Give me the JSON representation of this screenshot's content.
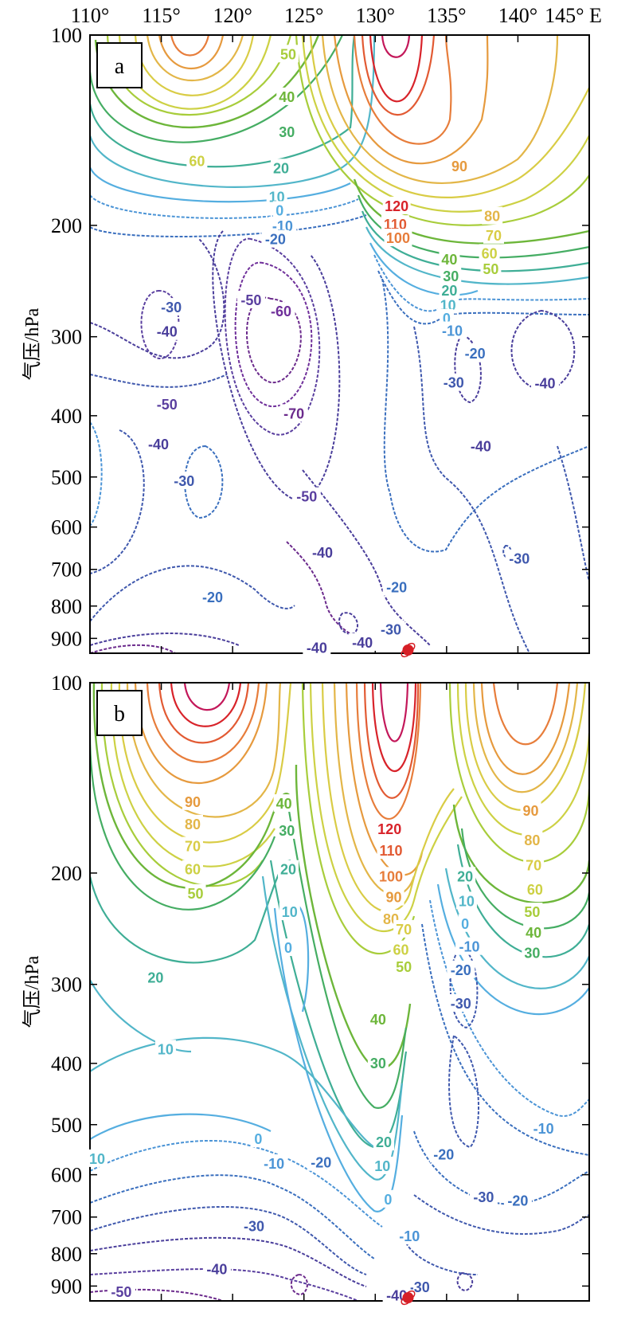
{
  "figure": {
    "x_unit_suffix": "E"
  },
  "colors": {
    "contours": {
      "-70": "#6b2a8c",
      "-60": "#6f2f9a",
      "-50": "#5a3f9f",
      "-40": "#4a3e9b",
      "-30": "#3f58ad",
      "-20": "#3a6fbe",
      "-10": "#4b94d6",
      "0": "#55aee0",
      "10": "#52b6c9",
      "20": "#3fae96",
      "30": "#45ad63",
      "40": "#6db63a",
      "50": "#a8cd3b",
      "60": "#cdd144",
      "70": "#d9cc45",
      "80": "#e3b648",
      "90": "#e69a3e",
      "100": "#e77d3b",
      "110": "#e25a33",
      "120": "#d8232a"
    },
    "marker": "#d61f26"
  },
  "chart_data": [
    {
      "type": "contour",
      "panel_label": "a",
      "x_ticks": [
        110,
        115,
        120,
        125,
        130,
        135,
        140,
        145
      ],
      "x_tick_labels": [
        "110°",
        "115°",
        "120°",
        "125°",
        "130°",
        "135°",
        "140°",
        "145° E"
      ],
      "xlim": [
        110,
        145
      ],
      "y_ticks": [
        100,
        200,
        300,
        400,
        500,
        600,
        700,
        800,
        900
      ],
      "y_tick_labels": [
        "100",
        "200",
        "300",
        "400",
        "500",
        "600",
        "700",
        "800",
        "900"
      ],
      "ylim": [
        100,
        950
      ],
      "ylabel": "气压/hPa",
      "y_scale": "log",
      "marker": {
        "x": 132.3,
        "y": 950
      },
      "labels": [
        {
          "text": "50",
          "v": 50,
          "x": 123.9,
          "y": 107
        },
        {
          "text": "40",
          "v": 40,
          "x": 123.8,
          "y": 125
        },
        {
          "text": "30",
          "v": 30,
          "x": 123.8,
          "y": 142
        },
        {
          "text": "60",
          "v": 60,
          "x": 117.5,
          "y": 158
        },
        {
          "text": "20",
          "v": 20,
          "x": 123.4,
          "y": 162
        },
        {
          "text": "10",
          "v": 10,
          "x": 123.1,
          "y": 180
        },
        {
          "text": "0",
          "v": 0,
          "x": 123.3,
          "y": 189
        },
        {
          "text": "-10",
          "v": -10,
          "x": 123.5,
          "y": 200
        },
        {
          "text": "-20",
          "v": -20,
          "x": 123.0,
          "y": 210
        },
        {
          "text": "90",
          "v": 90,
          "x": 135.9,
          "y": 161
        },
        {
          "text": "120",
          "v": 120,
          "x": 131.5,
          "y": 186
        },
        {
          "text": "110",
          "v": 110,
          "x": 131.4,
          "y": 199
        },
        {
          "text": "100",
          "v": 100,
          "x": 131.6,
          "y": 209
        },
        {
          "text": "80",
          "v": 80,
          "x": 138.2,
          "y": 193
        },
        {
          "text": "70",
          "v": 70,
          "x": 138.3,
          "y": 207
        },
        {
          "text": "60",
          "v": 60,
          "x": 138.0,
          "y": 221
        },
        {
          "text": "50",
          "v": 50,
          "x": 138.1,
          "y": 234
        },
        {
          "text": "40",
          "v": 40,
          "x": 135.2,
          "y": 226
        },
        {
          "text": "30",
          "v": 30,
          "x": 135.3,
          "y": 240
        },
        {
          "text": "20",
          "v": 20,
          "x": 135.2,
          "y": 253
        },
        {
          "text": "10",
          "v": 10,
          "x": 135.1,
          "y": 267
        },
        {
          "text": "0",
          "v": 0,
          "x": 135.0,
          "y": 280
        },
        {
          "text": "-10",
          "v": -10,
          "x": 135.4,
          "y": 293
        },
        {
          "text": "-20",
          "v": -20,
          "x": 137.0,
          "y": 318
        },
        {
          "text": "-30",
          "v": -30,
          "x": 115.7,
          "y": 269
        },
        {
          "text": "-50",
          "v": -50,
          "x": 121.3,
          "y": 262
        },
        {
          "text": "-60",
          "v": -60,
          "x": 123.4,
          "y": 273
        },
        {
          "text": "-40",
          "v": -40,
          "x": 115.4,
          "y": 294
        },
        {
          "text": "-30",
          "v": -30,
          "x": 135.5,
          "y": 354
        },
        {
          "text": "-40",
          "v": -40,
          "x": 141.9,
          "y": 355
        },
        {
          "text": "-50",
          "v": -50,
          "x": 115.4,
          "y": 383
        },
        {
          "text": "-70",
          "v": -70,
          "x": 124.3,
          "y": 396
        },
        {
          "text": "-40",
          "v": -40,
          "x": 114.8,
          "y": 443
        },
        {
          "text": "-40",
          "v": -40,
          "x": 137.4,
          "y": 446
        },
        {
          "text": "-30",
          "v": -30,
          "x": 116.6,
          "y": 506
        },
        {
          "text": "-50",
          "v": -50,
          "x": 125.2,
          "y": 536
        },
        {
          "text": "-40",
          "v": -40,
          "x": 126.3,
          "y": 657
        },
        {
          "text": "-30",
          "v": -30,
          "x": 140.1,
          "y": 672
        },
        {
          "text": "-20",
          "v": -20,
          "x": 118.6,
          "y": 773
        },
        {
          "text": "-20",
          "v": -20,
          "x": 131.5,
          "y": 746
        },
        {
          "text": "-30",
          "v": -30,
          "x": 131.1,
          "y": 870
        },
        {
          "text": "-40",
          "v": -40,
          "x": 129.1,
          "y": 912
        },
        {
          "text": "-40",
          "v": -40,
          "x": 125.9,
          "y": 929
        }
      ]
    },
    {
      "type": "contour",
      "panel_label": "b",
      "x_ticks": [
        110,
        115,
        120,
        125,
        130,
        135,
        140,
        145
      ],
      "xlim": [
        110,
        145
      ],
      "y_ticks": [
        100,
        200,
        300,
        400,
        500,
        600,
        700,
        800,
        900
      ],
      "y_tick_labels": [
        "100",
        "200",
        "300",
        "400",
        "500",
        "600",
        "700",
        "800",
        "900"
      ],
      "ylim": [
        100,
        950
      ],
      "ylabel": "气压/hPa",
      "y_scale": "log",
      "marker": {
        "x": 132.3,
        "y": 950
      },
      "labels": [
        {
          "text": "90",
          "v": 90,
          "x": 117.2,
          "y": 154
        },
        {
          "text": "40",
          "v": 40,
          "x": 123.6,
          "y": 155
        },
        {
          "text": "80",
          "v": 80,
          "x": 117.2,
          "y": 167
        },
        {
          "text": "30",
          "v": 30,
          "x": 123.8,
          "y": 171
        },
        {
          "text": "70",
          "v": 70,
          "x": 117.2,
          "y": 181
        },
        {
          "text": "60",
          "v": 60,
          "x": 117.2,
          "y": 197
        },
        {
          "text": "50",
          "v": 50,
          "x": 117.4,
          "y": 215
        },
        {
          "text": "20",
          "v": 20,
          "x": 123.9,
          "y": 197
        },
        {
          "text": "10",
          "v": 10,
          "x": 124.0,
          "y": 230
        },
        {
          "text": "120",
          "v": 120,
          "x": 131.0,
          "y": 170
        },
        {
          "text": "110",
          "v": 110,
          "x": 131.1,
          "y": 184
        },
        {
          "text": "100",
          "v": 100,
          "x": 131.1,
          "y": 202
        },
        {
          "text": "90",
          "v": 90,
          "x": 131.3,
          "y": 218
        },
        {
          "text": "80",
          "v": 80,
          "x": 131.1,
          "y": 236
        },
        {
          "text": "70",
          "v": 70,
          "x": 132.0,
          "y": 245
        },
        {
          "text": "60",
          "v": 60,
          "x": 131.8,
          "y": 264
        },
        {
          "text": "50",
          "v": 50,
          "x": 132.0,
          "y": 281
        },
        {
          "text": "0",
          "v": 0,
          "x": 123.9,
          "y": 262
        },
        {
          "text": "90",
          "v": 90,
          "x": 140.9,
          "y": 159
        },
        {
          "text": "80",
          "v": 80,
          "x": 141.0,
          "y": 177
        },
        {
          "text": "70",
          "v": 70,
          "x": 141.1,
          "y": 194
        },
        {
          "text": "60",
          "v": 60,
          "x": 141.2,
          "y": 212
        },
        {
          "text": "50",
          "v": 50,
          "x": 141.0,
          "y": 230
        },
        {
          "text": "40",
          "v": 40,
          "x": 141.1,
          "y": 248
        },
        {
          "text": "30",
          "v": 30,
          "x": 141.0,
          "y": 267
        },
        {
          "text": "20",
          "v": 20,
          "x": 136.3,
          "y": 202
        },
        {
          "text": "10",
          "v": 10,
          "x": 136.4,
          "y": 221
        },
        {
          "text": "0",
          "v": 0,
          "x": 136.3,
          "y": 240
        },
        {
          "text": "-10",
          "v": -10,
          "x": 136.6,
          "y": 261
        },
        {
          "text": "-20",
          "v": -20,
          "x": 136.0,
          "y": 284
        },
        {
          "text": "-30",
          "v": -30,
          "x": 136.0,
          "y": 321
        },
        {
          "text": "20",
          "v": 20,
          "x": 114.6,
          "y": 292
        },
        {
          "text": "40",
          "v": 40,
          "x": 130.2,
          "y": 340
        },
        {
          "text": "10",
          "v": 10,
          "x": 115.3,
          "y": 379
        },
        {
          "text": "30",
          "v": 30,
          "x": 130.2,
          "y": 399
        },
        {
          "text": "-10",
          "v": -10,
          "x": 141.8,
          "y": 506
        },
        {
          "text": "0",
          "v": 0,
          "x": 121.8,
          "y": 526
        },
        {
          "text": "20",
          "v": 20,
          "x": 130.6,
          "y": 532
        },
        {
          "text": "10",
          "v": 10,
          "x": 110.5,
          "y": 565
        },
        {
          "text": "-20",
          "v": -20,
          "x": 134.8,
          "y": 556
        },
        {
          "text": "10",
          "v": 10,
          "x": 130.5,
          "y": 580
        },
        {
          "text": "-10",
          "v": -10,
          "x": 122.9,
          "y": 575
        },
        {
          "text": "-20",
          "v": -20,
          "x": 126.2,
          "y": 573
        },
        {
          "text": "-20",
          "v": -20,
          "x": 140.0,
          "y": 658
        },
        {
          "text": "-30",
          "v": -30,
          "x": 137.6,
          "y": 650
        },
        {
          "text": "0",
          "v": 0,
          "x": 130.9,
          "y": 655
        },
        {
          "text": "-30",
          "v": -30,
          "x": 121.5,
          "y": 722
        },
        {
          "text": "-10",
          "v": -10,
          "x": 132.4,
          "y": 749
        },
        {
          "text": "-40",
          "v": -40,
          "x": 118.9,
          "y": 845
        },
        {
          "text": "-50",
          "v": -50,
          "x": 112.2,
          "y": 917
        },
        {
          "text": "-30",
          "v": -30,
          "x": 133.1,
          "y": 902
        },
        {
          "text": "-40",
          "v": -40,
          "x": 131.5,
          "y": 929
        }
      ]
    }
  ]
}
